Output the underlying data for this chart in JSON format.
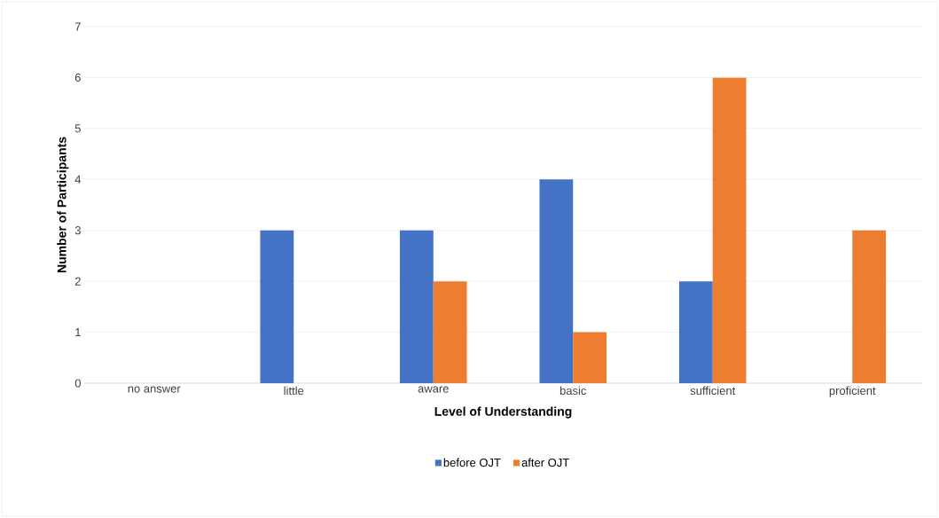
{
  "chart_data": {
    "type": "bar",
    "xlabel": "Level of Understanding",
    "ylabel": "Number of Participants",
    "categories": [
      "no answer",
      "little",
      "aware",
      "basic",
      "sufficient",
      "proficient"
    ],
    "series": [
      {
        "name": "before OJT",
        "color": "#4472c4",
        "values": [
          0,
          3,
          3,
          4,
          2,
          0
        ]
      },
      {
        "name": "after OJT",
        "color": "#ed7d31",
        "values": [
          0,
          0,
          2,
          1,
          6,
          3
        ]
      }
    ],
    "ylim": [
      0,
      7
    ],
    "yticks": [
      0,
      1,
      2,
      3,
      4,
      5,
      6,
      7
    ],
    "grid": "y",
    "legend": "bottom"
  }
}
